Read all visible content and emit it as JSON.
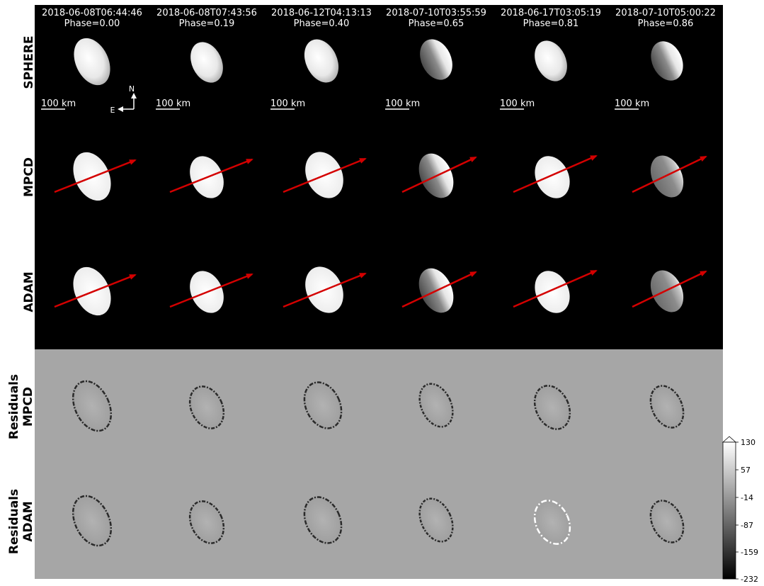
{
  "columns": [
    {
      "date": "2018-06-08T06:44:46",
      "phase": "Phase=0.00",
      "scale": "100 km"
    },
    {
      "date": "2018-06-08T07:43:56",
      "phase": "Phase=0.19",
      "scale": "100 km"
    },
    {
      "date": "2018-06-12T04:13:13",
      "phase": "Phase=0.40",
      "scale": "100 km"
    },
    {
      "date": "2018-07-10T03:55:59",
      "phase": "Phase=0.65",
      "scale": "100 km"
    },
    {
      "date": "2018-06-17T03:05:19",
      "phase": "Phase=0.81",
      "scale": "100 km"
    },
    {
      "date": "2018-07-10T05:00:22",
      "phase": "Phase=0.86",
      "scale": "100 km"
    }
  ],
  "rows": [
    {
      "lines": [
        "SPHERE"
      ],
      "kind": "observation"
    },
    {
      "lines": [
        "MPCD"
      ],
      "kind": "model"
    },
    {
      "lines": [
        "ADAM"
      ],
      "kind": "model"
    },
    {
      "lines": [
        "Residuals",
        "MPCD"
      ],
      "kind": "residual"
    },
    {
      "lines": [
        "Residuals",
        "ADAM"
      ],
      "kind": "residual"
    }
  ],
  "compass": {
    "north": "N",
    "east": "E"
  },
  "colorbar": {
    "ticks": [
      "130",
      "57",
      "-14",
      "-87",
      "-159",
      "-232"
    ],
    "min": -232,
    "max": 130,
    "extend": "max"
  },
  "spin_axis_arrow_color": "#d40000",
  "colors": {
    "panel_background": "#000000",
    "residual_background": "#a6a6a6"
  }
}
